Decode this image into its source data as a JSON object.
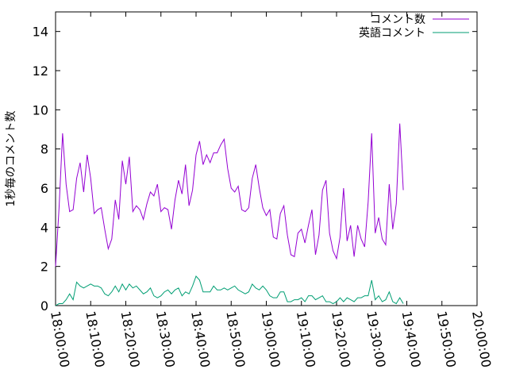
{
  "chart_data": {
    "type": "line",
    "title": "",
    "xlabel": "",
    "ylabel": "1秒毎のコメント数",
    "ylim": [
      0,
      15
    ],
    "yticks": [
      0,
      2,
      4,
      6,
      8,
      10,
      12,
      14
    ],
    "xlim": [
      "18:00:00",
      "20:00:00"
    ],
    "xtick_labels": [
      "18:00:00",
      "18:10:00",
      "18:20:00",
      "18:30:00",
      "18:40:00",
      "18:50:00",
      "19:00:00",
      "19:10:00",
      "19:20:00",
      "19:30:00",
      "19:40:00",
      "19:50:00",
      "20:00:00"
    ],
    "grid": false,
    "legend": "top-right",
    "series": [
      {
        "name": "コメント数",
        "color": "#9400d3",
        "points": [
          [
            "18:00:00",
            2.0
          ],
          [
            "18:01:00",
            5.0
          ],
          [
            "18:02:00",
            8.8
          ],
          [
            "18:03:00",
            6.2
          ],
          [
            "18:04:00",
            4.8
          ],
          [
            "18:05:00",
            4.9
          ],
          [
            "18:06:00",
            6.5
          ],
          [
            "18:07:00",
            7.3
          ],
          [
            "18:08:00",
            5.8
          ],
          [
            "18:09:00",
            7.7
          ],
          [
            "18:10:00",
            6.5
          ],
          [
            "18:11:00",
            4.7
          ],
          [
            "18:12:00",
            4.9
          ],
          [
            "18:13:00",
            5.0
          ],
          [
            "18:14:00",
            3.9
          ],
          [
            "18:15:00",
            2.9
          ],
          [
            "18:16:00",
            3.4
          ],
          [
            "18:17:00",
            5.4
          ],
          [
            "18:18:00",
            4.4
          ],
          [
            "18:19:00",
            7.4
          ],
          [
            "18:20:00",
            6.2
          ],
          [
            "18:21:00",
            7.6
          ],
          [
            "18:22:00",
            4.8
          ],
          [
            "18:23:00",
            5.1
          ],
          [
            "18:24:00",
            4.9
          ],
          [
            "18:25:00",
            4.4
          ],
          [
            "18:26:00",
            5.2
          ],
          [
            "18:27:00",
            5.8
          ],
          [
            "18:28:00",
            5.6
          ],
          [
            "18:29:00",
            6.2
          ],
          [
            "18:30:00",
            4.8
          ],
          [
            "18:31:00",
            5.0
          ],
          [
            "18:32:00",
            4.9
          ],
          [
            "18:33:00",
            3.9
          ],
          [
            "18:34:00",
            5.4
          ],
          [
            "18:35:00",
            6.4
          ],
          [
            "18:36:00",
            5.7
          ],
          [
            "18:37:00",
            7.2
          ],
          [
            "18:38:00",
            5.1
          ],
          [
            "18:39:00",
            5.9
          ],
          [
            "18:40:00",
            7.7
          ],
          [
            "18:41:00",
            8.4
          ],
          [
            "18:42:00",
            7.2
          ],
          [
            "18:43:00",
            7.7
          ],
          [
            "18:44:00",
            7.3
          ],
          [
            "18:45:00",
            7.8
          ],
          [
            "18:46:00",
            7.8
          ],
          [
            "18:47:00",
            8.2
          ],
          [
            "18:48:00",
            8.5
          ],
          [
            "18:49:00",
            7.0
          ],
          [
            "18:50:00",
            6.0
          ],
          [
            "18:51:00",
            5.8
          ],
          [
            "18:52:00",
            6.1
          ],
          [
            "18:53:00",
            4.9
          ],
          [
            "18:54:00",
            4.8
          ],
          [
            "18:55:00",
            5.0
          ],
          [
            "18:56:00",
            6.5
          ],
          [
            "18:57:00",
            7.2
          ],
          [
            "18:58:00",
            6.0
          ],
          [
            "18:59:00",
            5.0
          ],
          [
            "19:00:00",
            4.6
          ],
          [
            "19:01:00",
            4.9
          ],
          [
            "19:02:00",
            3.5
          ],
          [
            "19:03:00",
            3.4
          ],
          [
            "19:04:00",
            4.7
          ],
          [
            "19:05:00",
            5.1
          ],
          [
            "19:06:00",
            3.6
          ],
          [
            "19:07:00",
            2.6
          ],
          [
            "19:08:00",
            2.5
          ],
          [
            "19:09:00",
            3.7
          ],
          [
            "19:10:00",
            3.9
          ],
          [
            "19:11:00",
            3.2
          ],
          [
            "19:12:00",
            4.1
          ],
          [
            "19:13:00",
            4.9
          ],
          [
            "19:14:00",
            2.6
          ],
          [
            "19:15:00",
            3.6
          ],
          [
            "19:16:00",
            5.9
          ],
          [
            "19:17:00",
            6.4
          ],
          [
            "19:18:00",
            3.7
          ],
          [
            "19:19:00",
            2.8
          ],
          [
            "19:20:00",
            2.4
          ],
          [
            "19:21:00",
            3.5
          ],
          [
            "19:22:00",
            6.0
          ],
          [
            "19:23:00",
            3.3
          ],
          [
            "19:24:00",
            4.1
          ],
          [
            "19:25:00",
            2.5
          ],
          [
            "19:26:00",
            4.1
          ],
          [
            "19:27:00",
            3.4
          ],
          [
            "19:28:00",
            3.0
          ],
          [
            "19:29:00",
            5.3
          ],
          [
            "19:30:00",
            8.8
          ],
          [
            "19:31:00",
            3.7
          ],
          [
            "19:32:00",
            4.5
          ],
          [
            "19:33:00",
            3.4
          ],
          [
            "19:34:00",
            3.1
          ],
          [
            "19:35:00",
            6.2
          ],
          [
            "19:36:00",
            3.9
          ],
          [
            "19:37:00",
            5.2
          ],
          [
            "19:38:00",
            9.3
          ],
          [
            "19:39:00",
            5.9
          ]
        ]
      },
      {
        "name": "英語コメント",
        "color": "#009e73",
        "points": [
          [
            "18:00:00",
            0.0
          ],
          [
            "18:01:00",
            0.1
          ],
          [
            "18:02:00",
            0.1
          ],
          [
            "18:03:00",
            0.3
          ],
          [
            "18:04:00",
            0.6
          ],
          [
            "18:05:00",
            0.3
          ],
          [
            "18:06:00",
            1.2
          ],
          [
            "18:07:00",
            1.0
          ],
          [
            "18:08:00",
            0.9
          ],
          [
            "18:09:00",
            1.0
          ],
          [
            "18:10:00",
            1.1
          ],
          [
            "18:11:00",
            1.0
          ],
          [
            "18:12:00",
            1.0
          ],
          [
            "18:13:00",
            0.9
          ],
          [
            "18:14:00",
            0.6
          ],
          [
            "18:15:00",
            0.5
          ],
          [
            "18:16:00",
            0.7
          ],
          [
            "18:17:00",
            1.0
          ],
          [
            "18:18:00",
            0.7
          ],
          [
            "18:19:00",
            1.1
          ],
          [
            "18:20:00",
            0.8
          ],
          [
            "18:21:00",
            1.1
          ],
          [
            "18:22:00",
            0.9
          ],
          [
            "18:23:00",
            1.0
          ],
          [
            "18:24:00",
            0.8
          ],
          [
            "18:25:00",
            0.6
          ],
          [
            "18:26:00",
            0.7
          ],
          [
            "18:27:00",
            0.9
          ],
          [
            "18:28:00",
            0.5
          ],
          [
            "18:29:00",
            0.4
          ],
          [
            "18:30:00",
            0.5
          ],
          [
            "18:31:00",
            0.7
          ],
          [
            "18:32:00",
            0.8
          ],
          [
            "18:33:00",
            0.6
          ],
          [
            "18:34:00",
            0.8
          ],
          [
            "18:35:00",
            0.9
          ],
          [
            "18:36:00",
            0.5
          ],
          [
            "18:37:00",
            0.7
          ],
          [
            "18:38:00",
            0.6
          ],
          [
            "18:39:00",
            1.0
          ],
          [
            "18:40:00",
            1.5
          ],
          [
            "18:41:00",
            1.3
          ],
          [
            "18:42:00",
            0.7
          ],
          [
            "18:43:00",
            0.7
          ],
          [
            "18:44:00",
            0.7
          ],
          [
            "18:45:00",
            1.0
          ],
          [
            "18:46:00",
            0.8
          ],
          [
            "18:47:00",
            0.8
          ],
          [
            "18:48:00",
            0.9
          ],
          [
            "18:49:00",
            0.8
          ],
          [
            "18:50:00",
            0.9
          ],
          [
            "18:51:00",
            1.0
          ],
          [
            "18:52:00",
            0.8
          ],
          [
            "18:53:00",
            0.7
          ],
          [
            "18:54:00",
            0.6
          ],
          [
            "18:55:00",
            0.7
          ],
          [
            "18:56:00",
            1.1
          ],
          [
            "18:57:00",
            0.9
          ],
          [
            "18:58:00",
            0.8
          ],
          [
            "18:59:00",
            1.0
          ],
          [
            "19:00:00",
            0.8
          ],
          [
            "19:01:00",
            0.5
          ],
          [
            "19:02:00",
            0.4
          ],
          [
            "19:03:00",
            0.4
          ],
          [
            "19:04:00",
            0.7
          ],
          [
            "19:05:00",
            0.7
          ],
          [
            "19:06:00",
            0.2
          ],
          [
            "19:07:00",
            0.2
          ],
          [
            "19:08:00",
            0.3
          ],
          [
            "19:09:00",
            0.3
          ],
          [
            "19:10:00",
            0.4
          ],
          [
            "19:11:00",
            0.2
          ],
          [
            "19:12:00",
            0.5
          ],
          [
            "19:13:00",
            0.5
          ],
          [
            "19:14:00",
            0.3
          ],
          [
            "19:15:00",
            0.4
          ],
          [
            "19:16:00",
            0.5
          ],
          [
            "19:17:00",
            0.2
          ],
          [
            "19:18:00",
            0.2
          ],
          [
            "19:19:00",
            0.1
          ],
          [
            "19:20:00",
            0.2
          ],
          [
            "19:21:00",
            0.4
          ],
          [
            "19:22:00",
            0.2
          ],
          [
            "19:23:00",
            0.4
          ],
          [
            "19:24:00",
            0.3
          ],
          [
            "19:25:00",
            0.2
          ],
          [
            "19:26:00",
            0.4
          ],
          [
            "19:27:00",
            0.4
          ],
          [
            "19:28:00",
            0.5
          ],
          [
            "19:29:00",
            0.5
          ],
          [
            "19:30:00",
            1.3
          ],
          [
            "19:31:00",
            0.3
          ],
          [
            "19:32:00",
            0.5
          ],
          [
            "19:33:00",
            0.2
          ],
          [
            "19:34:00",
            0.3
          ],
          [
            "19:35:00",
            0.7
          ],
          [
            "19:36:00",
            0.2
          ],
          [
            "19:37:00",
            0.1
          ],
          [
            "19:38:00",
            0.4
          ],
          [
            "19:39:00",
            0.1
          ]
        ]
      }
    ]
  }
}
